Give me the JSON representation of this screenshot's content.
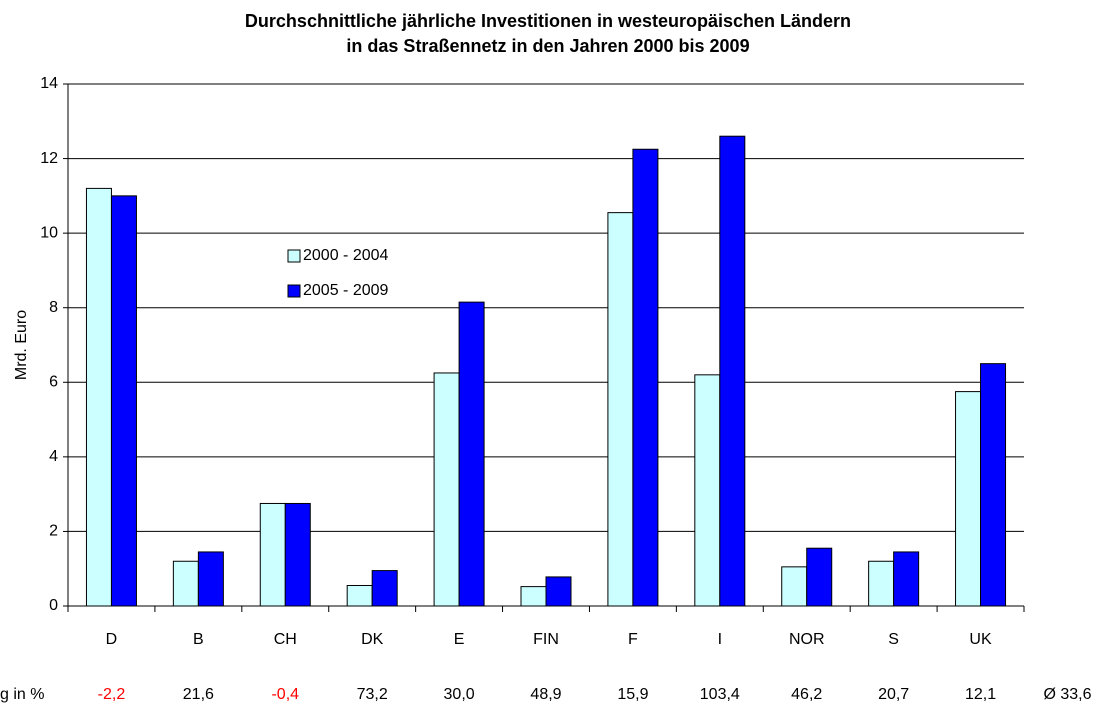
{
  "chart_data": {
    "type": "bar",
    "title_lines": [
      "Durchschnittliche jährliche Investitionen in westeuropäischen Ländern",
      "in das Straßennetz in den Jahren 2000 bis 2009"
    ],
    "y_label": "Mrd. Euro",
    "categories": [
      "D",
      "B",
      "CH",
      "DK",
      "E",
      "FIN",
      "F",
      "I",
      "NOR",
      "S",
      "UK"
    ],
    "series": [
      {
        "name": "2000 - 2004",
        "color": "#ccffff",
        "values": [
          11.2,
          1.2,
          2.75,
          0.55,
          6.25,
          0.52,
          10.55,
          6.2,
          1.05,
          1.2,
          5.75
        ]
      },
      {
        "name": "2005 - 2009",
        "color": "#0000ff",
        "values": [
          11.0,
          1.45,
          2.75,
          0.95,
          8.15,
          0.78,
          12.25,
          12.6,
          1.55,
          1.45,
          6.5
        ]
      }
    ],
    "ylim": [
      0,
      14
    ],
    "yticks": [
      0,
      2,
      4,
      6,
      8,
      10,
      12,
      14
    ],
    "grid": true,
    "legend": "upper left",
    "change_row_label": "g in %",
    "change_labels": [
      "-2,2",
      "21,6",
      "-0,4",
      "73,2",
      "30,0",
      "48,9",
      "15,9",
      "103,4",
      "46,2",
      "20,7",
      "12,1"
    ],
    "negative_color": "#ff0000",
    "average_label": "Ø 33,6"
  }
}
